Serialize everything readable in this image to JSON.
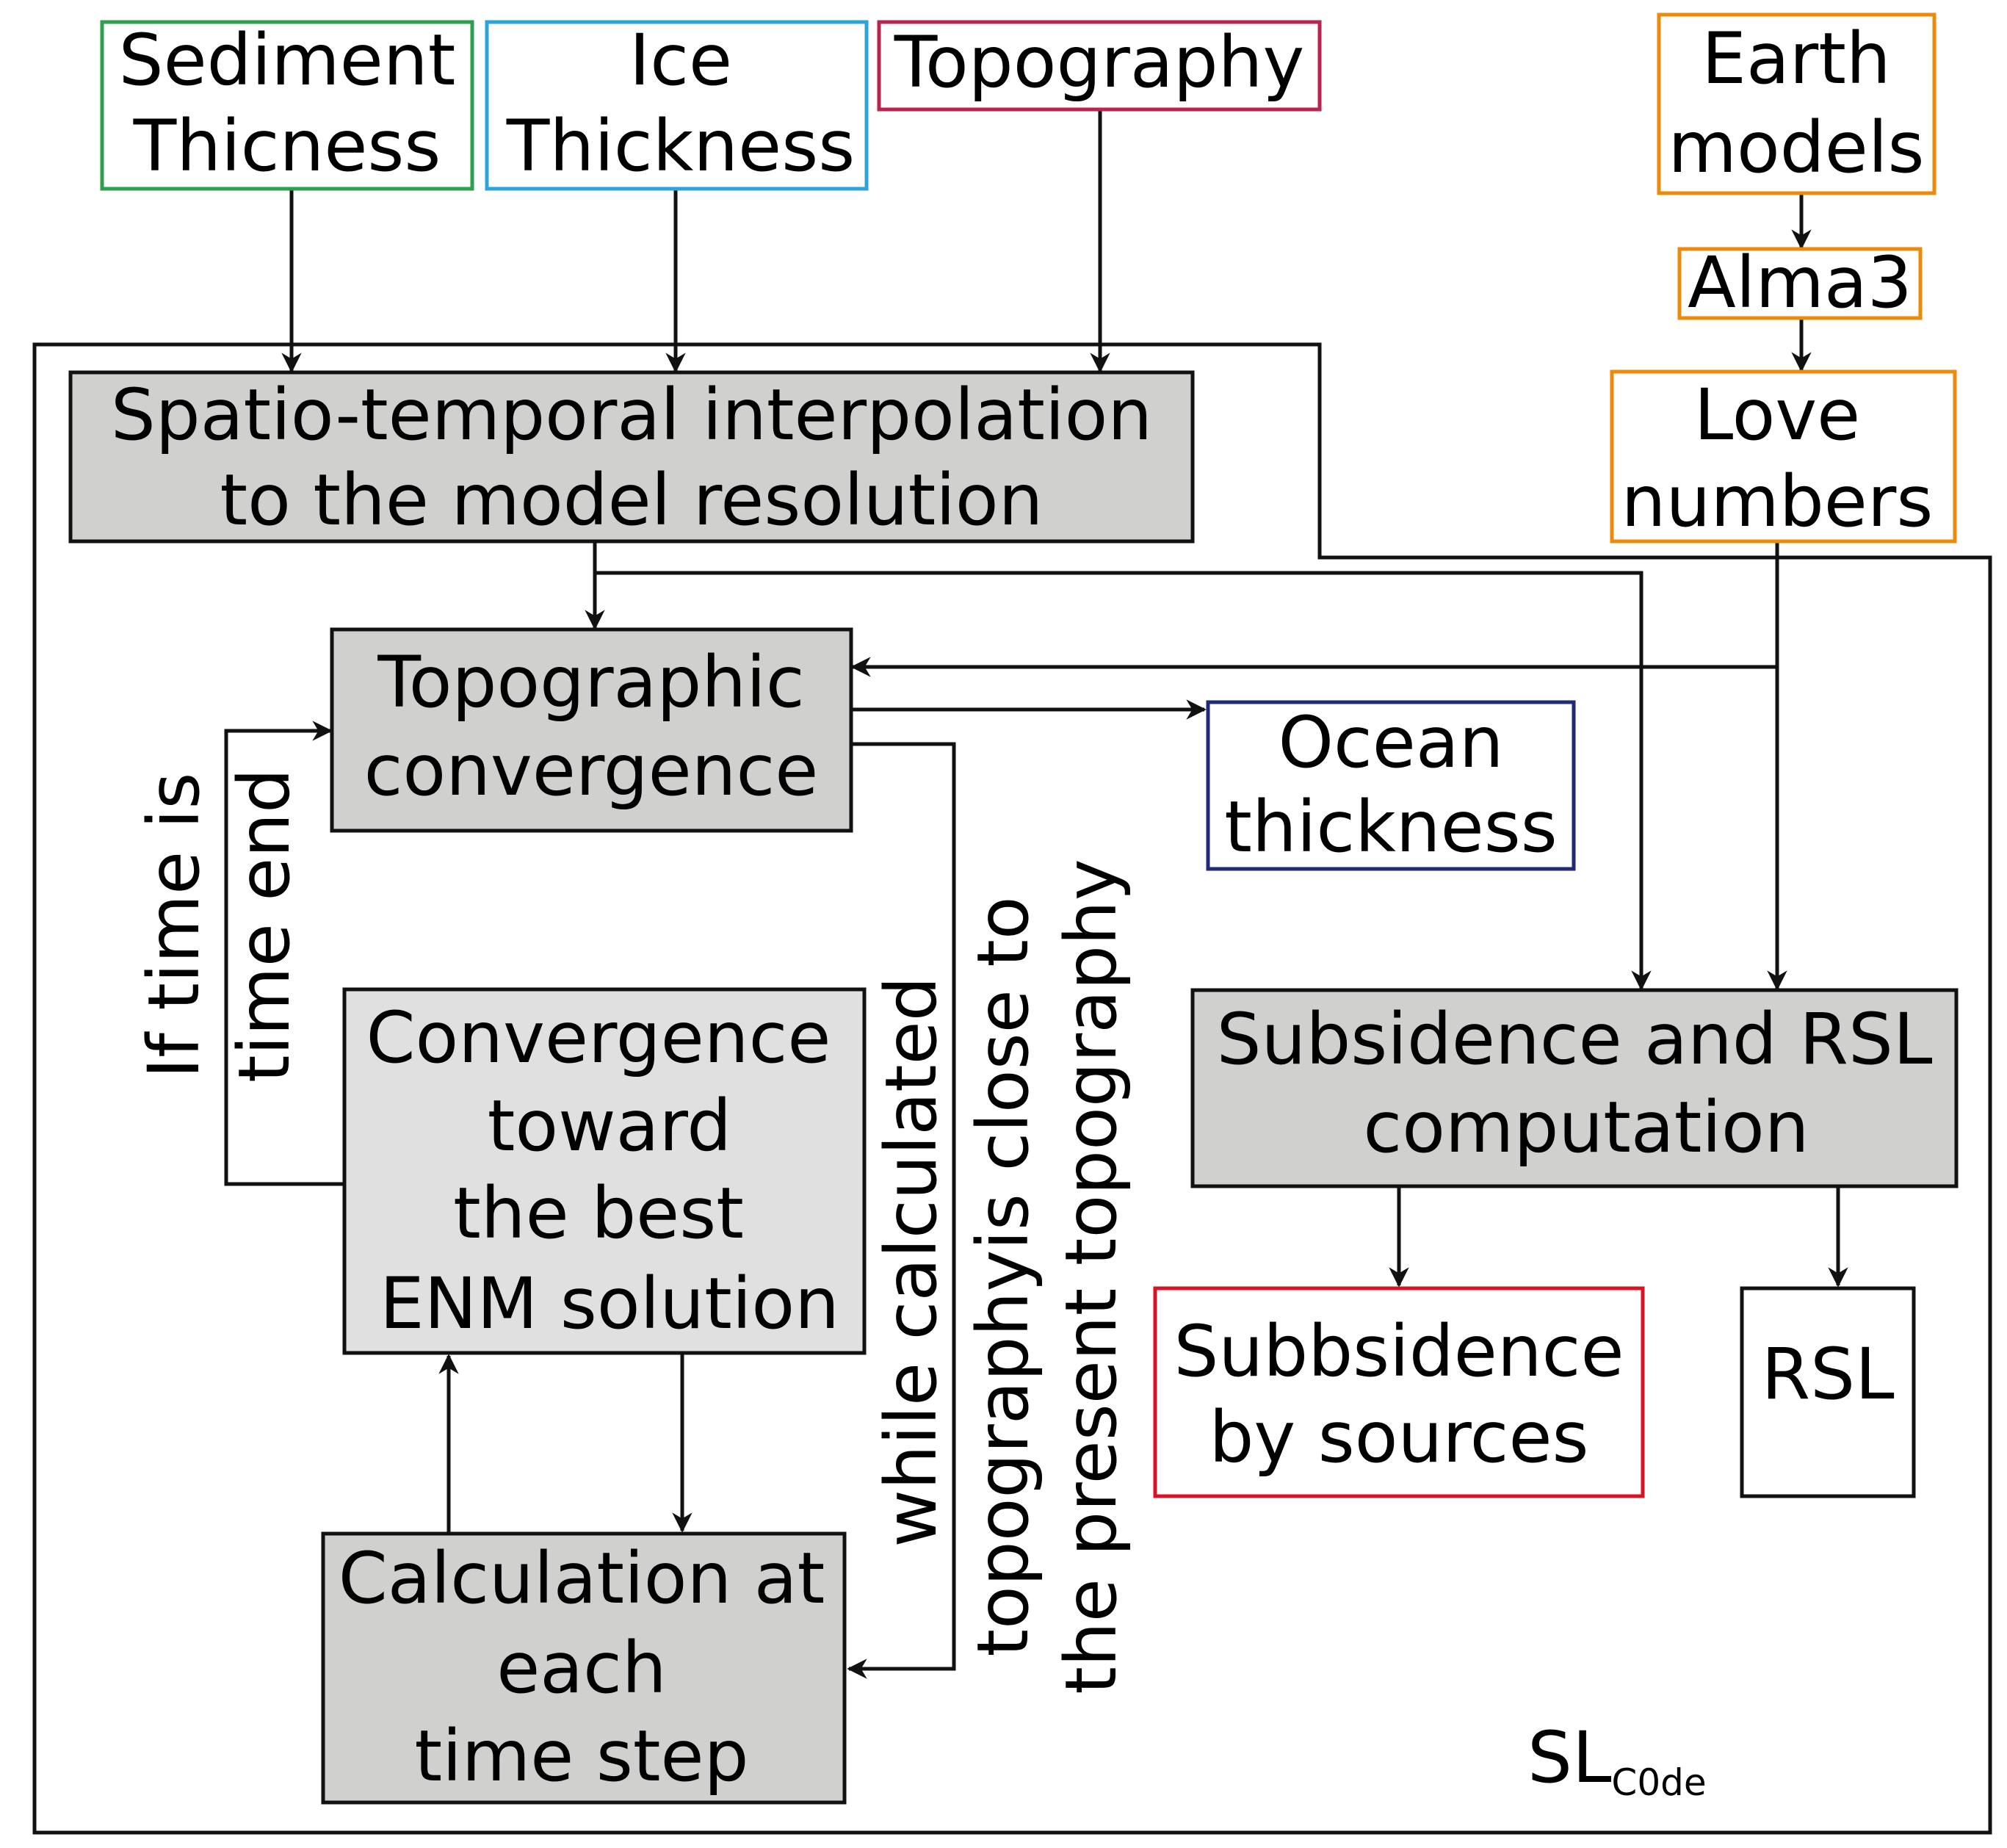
{
  "colors": {
    "sediment": "#2e9e4f",
    "ice": "#2ba4dc",
    "topography": "#b8264f",
    "earth": "#ec8a0c",
    "ocean": "#1f2a7a",
    "subsidence_sources": "#d61423",
    "process_fill": "#d0d0ce",
    "convergence_fill": "#e0e0e0",
    "line": "#111111"
  },
  "inputs": {
    "sediment": [
      "Sediment",
      "Thicness"
    ],
    "ice": [
      "Ice",
      "Thickness"
    ],
    "topography": [
      "Topography"
    ],
    "earth_models": [
      "Earth",
      "models"
    ],
    "alma3": [
      "Alma3"
    ],
    "love_numbers": [
      "Love",
      "numbers"
    ]
  },
  "processes": {
    "interpolation": [
      "Spatio-temporal interpolation",
      "to the model resolution"
    ],
    "topographic_convergence": [
      "Topographic",
      "convergence"
    ],
    "best_solution": [
      "Convergence",
      "toward",
      "the best",
      "ENM solution"
    ],
    "time_step": [
      "Calculation at",
      "each",
      "time step"
    ],
    "subsidence_rsl": [
      "Subsidence and RSL",
      "computation"
    ]
  },
  "outputs": {
    "ocean_thickness": [
      "Ocean",
      "thickness"
    ],
    "subsidence_sources": [
      "Subbsidence",
      "by sources"
    ],
    "rsl": [
      "RSL"
    ]
  },
  "loop_labels": {
    "time_end": [
      "If time is",
      "time end"
    ],
    "while": [
      "while calculated",
      "topographyis close to",
      "the present topography"
    ]
  },
  "container": {
    "label_main": "SL",
    "label_sub": "C0de"
  }
}
